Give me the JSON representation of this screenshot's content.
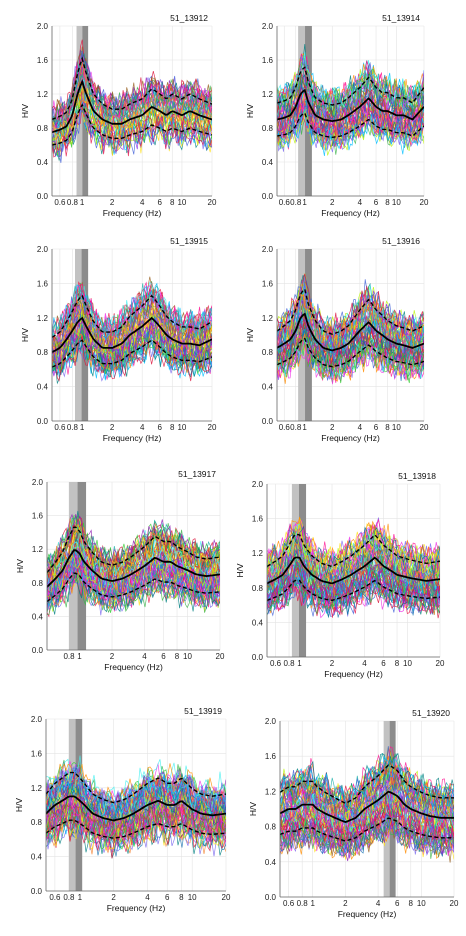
{
  "chart_data": [
    {
      "type": "line",
      "title": "51_13912",
      "xlabel": "Frequency (Hz)",
      "ylabel": "H/V",
      "xscale": "log",
      "xlim": [
        0.5,
        20
      ],
      "ylim": [
        0,
        2
      ],
      "xticks": [
        "0.6",
        "0.8",
        "1",
        "2",
        "4",
        "6",
        "8",
        "10",
        "20"
      ],
      "xtick_values": [
        0.6,
        0.8,
        1,
        2,
        4,
        6,
        8,
        10,
        20
      ],
      "yticks": [
        "0.0",
        "0.4",
        "0.8",
        "1.2",
        "1.6",
        "2.0"
      ],
      "ytick_values": [
        0,
        0.4,
        0.8,
        1.2,
        1.6,
        2.0
      ],
      "band": [
        0.88,
        1.15
      ],
      "grid": true,
      "seed": 11,
      "n_windows": 45,
      "mean_x": [
        0.5,
        0.6,
        0.7,
        0.8,
        0.9,
        1.0,
        1.1,
        1.3,
        1.6,
        2,
        2.5,
        3,
        4,
        5,
        6,
        7,
        8,
        10,
        12,
        15,
        20
      ],
      "mean_y": [
        0.75,
        0.78,
        0.82,
        0.95,
        1.2,
        1.35,
        1.2,
        1.0,
        0.9,
        0.85,
        0.85,
        0.9,
        0.95,
        1.05,
        1.0,
        0.95,
        1.0,
        0.95,
        1.0,
        0.95,
        0.9
      ],
      "spread": 0.28
    },
    {
      "type": "line",
      "title": "51_13914",
      "xlabel": "Frequency (Hz)",
      "ylabel": "H/V",
      "xscale": "log",
      "xlim": [
        0.5,
        20
      ],
      "ylim": [
        0,
        2
      ],
      "xticks": [
        "0.6",
        "0.8",
        "1",
        "2",
        "4",
        "6",
        "8",
        "10",
        "20"
      ],
      "xtick_values": [
        0.6,
        0.8,
        1,
        2,
        4,
        6,
        8,
        10,
        20
      ],
      "yticks": [
        "0.0",
        "0.4",
        "0.8",
        "1.2",
        "1.6",
        "2.0"
      ],
      "ytick_values": [
        0,
        0.4,
        0.8,
        1.2,
        1.6,
        2.0
      ],
      "band": [
        0.85,
        1.2
      ],
      "grid": true,
      "seed": 23,
      "n_windows": 55,
      "mean_x": [
        0.5,
        0.6,
        0.7,
        0.8,
        0.9,
        1.0,
        1.1,
        1.3,
        1.6,
        2,
        2.5,
        3,
        4,
        5,
        6,
        7,
        8,
        10,
        12,
        15,
        20
      ],
      "mean_y": [
        0.9,
        0.92,
        0.95,
        1.05,
        1.2,
        1.25,
        1.1,
        0.95,
        0.9,
        0.88,
        0.9,
        0.95,
        1.05,
        1.15,
        1.05,
        1.0,
        1.0,
        0.95,
        0.95,
        0.9,
        1.05
      ],
      "spread": 0.3
    },
    {
      "type": "line",
      "title": "51_13915",
      "xlabel": "Frequency (Hz)",
      "ylabel": "H/V",
      "xscale": "log",
      "xlim": [
        0.5,
        20
      ],
      "ylim": [
        0,
        2
      ],
      "xticks": [
        "0.6",
        "0.8",
        "1",
        "2",
        "4",
        "6",
        "8",
        "10",
        "20"
      ],
      "xtick_values": [
        0.6,
        0.8,
        1,
        2,
        4,
        6,
        8,
        10,
        20
      ],
      "yticks": [
        "0.0",
        "0.4",
        "0.8",
        "1.2",
        "1.6",
        "2.0"
      ],
      "ytick_values": [
        0,
        0.4,
        0.8,
        1.2,
        1.6,
        2.0
      ],
      "band": [
        0.85,
        1.15
      ],
      "grid": true,
      "seed": 37,
      "n_windows": 60,
      "mean_x": [
        0.5,
        0.6,
        0.7,
        0.8,
        0.9,
        1.0,
        1.1,
        1.3,
        1.6,
        2,
        2.5,
        3,
        4,
        5,
        6,
        7,
        8,
        10,
        12,
        15,
        20
      ],
      "mean_y": [
        0.8,
        0.85,
        0.95,
        1.05,
        1.15,
        1.2,
        1.1,
        0.95,
        0.85,
        0.85,
        0.9,
        1.0,
        1.1,
        1.2,
        1.1,
        1.0,
        0.95,
        0.9,
        0.9,
        0.88,
        0.95
      ],
      "spread": 0.3
    },
    {
      "type": "line",
      "title": "51_13916",
      "xlabel": "Frequency (Hz)",
      "ylabel": "H/V",
      "xscale": "log",
      "xlim": [
        0.5,
        20
      ],
      "ylim": [
        0,
        2
      ],
      "xticks": [
        "0.6",
        "0.8",
        "1",
        "2",
        "4",
        "6",
        "8",
        "10",
        "20"
      ],
      "xtick_values": [
        0.6,
        0.8,
        1,
        2,
        4,
        6,
        8,
        10,
        20
      ],
      "yticks": [
        "0.0",
        "0.4",
        "0.8",
        "1.2",
        "1.6",
        "2.0"
      ],
      "ytick_values": [
        0,
        0.4,
        0.8,
        1.2,
        1.6,
        2.0
      ],
      "band": [
        0.85,
        1.2
      ],
      "grid": true,
      "seed": 41,
      "n_windows": 60,
      "mean_x": [
        0.5,
        0.6,
        0.7,
        0.8,
        0.9,
        1.0,
        1.1,
        1.3,
        1.6,
        2,
        2.5,
        3,
        4,
        5,
        6,
        7,
        8,
        10,
        12,
        15,
        20
      ],
      "mean_y": [
        0.85,
        0.9,
        0.95,
        1.05,
        1.2,
        1.25,
        1.1,
        0.95,
        0.85,
        0.82,
        0.85,
        0.9,
        1.05,
        1.15,
        1.05,
        1.0,
        0.95,
        0.9,
        0.88,
        0.85,
        0.9
      ],
      "spread": 0.32
    },
    {
      "type": "line",
      "title": "51_13917",
      "xlabel": "Frequency (Hz)",
      "ylabel": "H/V",
      "xscale": "log",
      "xlim": [
        0.5,
        20
      ],
      "ylim": [
        0,
        2
      ],
      "xticks": [
        "0.8",
        "1",
        "2",
        "4",
        "6",
        "8",
        "10",
        "20"
      ],
      "xtick_values": [
        0.8,
        1,
        2,
        4,
        6,
        8,
        10,
        20
      ],
      "yticks": [
        "0.0",
        "0.4",
        "0.8",
        "1.2",
        "1.6",
        "2.0"
      ],
      "ytick_values": [
        0,
        0.4,
        0.8,
        1.2,
        1.6,
        2.0
      ],
      "band": [
        0.8,
        1.15
      ],
      "grid": true,
      "seed": 53,
      "n_windows": 70,
      "mean_x": [
        0.5,
        0.6,
        0.7,
        0.8,
        0.9,
        1.0,
        1.1,
        1.3,
        1.6,
        2,
        2.5,
        3,
        4,
        5,
        6,
        7,
        8,
        10,
        12,
        15,
        20
      ],
      "mean_y": [
        0.75,
        0.85,
        0.95,
        1.1,
        1.2,
        1.15,
        1.05,
        0.95,
        0.85,
        0.82,
        0.85,
        0.9,
        1.0,
        1.1,
        1.05,
        1.05,
        1.0,
        0.95,
        0.9,
        0.88,
        0.9
      ],
      "spread": 0.32
    },
    {
      "type": "line",
      "title": "51_13918",
      "xlabel": "Frequency (Hz)",
      "ylabel": "H/V",
      "xscale": "log",
      "xlim": [
        0.5,
        20
      ],
      "ylim": [
        0,
        2
      ],
      "xticks": [
        "0.6",
        "0.8",
        "1",
        "2",
        "4",
        "6",
        "8",
        "10",
        "20"
      ],
      "xtick_values": [
        0.6,
        0.8,
        1,
        2,
        4,
        6,
        8,
        10,
        20
      ],
      "yticks": [
        "0.0",
        "0.4",
        "0.8",
        "1.2",
        "1.6",
        "2.0"
      ],
      "ytick_values": [
        0,
        0.4,
        0.8,
        1.2,
        1.6,
        2.0
      ],
      "band": [
        0.85,
        1.15
      ],
      "grid": true,
      "seed": 67,
      "n_windows": 70,
      "mean_x": [
        0.5,
        0.6,
        0.7,
        0.8,
        0.9,
        1.0,
        1.1,
        1.3,
        1.6,
        2,
        2.5,
        3,
        4,
        5,
        6,
        7,
        8,
        10,
        12,
        15,
        20
      ],
      "mean_y": [
        0.85,
        0.9,
        0.95,
        1.05,
        1.15,
        1.15,
        1.05,
        0.95,
        0.88,
        0.85,
        0.9,
        0.95,
        1.05,
        1.15,
        1.05,
        1.0,
        0.95,
        0.92,
        0.9,
        0.88,
        0.9
      ],
      "spread": 0.32
    },
    {
      "type": "line",
      "title": "51_13919",
      "xlabel": "Frequency (Hz)",
      "ylabel": "H/V",
      "xscale": "log",
      "xlim": [
        0.5,
        20
      ],
      "ylim": [
        0,
        2
      ],
      "xticks": [
        "0.6",
        "0.8",
        "1",
        "2",
        "4",
        "6",
        "8",
        "10",
        "20"
      ],
      "xtick_values": [
        0.6,
        0.8,
        1,
        2,
        4,
        6,
        8,
        10,
        20
      ],
      "yticks": [
        "0.0",
        "0.4",
        "0.8",
        "1.2",
        "1.6",
        "2.0"
      ],
      "ytick_values": [
        0,
        0.4,
        0.8,
        1.2,
        1.6,
        2.0
      ],
      "band": [
        0.8,
        1.05
      ],
      "grid": true,
      "seed": 79,
      "n_windows": 75,
      "mean_x": [
        0.5,
        0.6,
        0.7,
        0.8,
        0.9,
        1.0,
        1.1,
        1.3,
        1.6,
        2,
        2.5,
        3,
        4,
        5,
        6,
        7,
        8,
        10,
        12,
        15,
        20
      ],
      "mean_y": [
        0.9,
        1.0,
        1.05,
        1.1,
        1.1,
        1.05,
        1.0,
        0.9,
        0.85,
        0.82,
        0.85,
        0.9,
        1.0,
        1.05,
        1.0,
        1.0,
        1.05,
        0.95,
        0.9,
        0.88,
        0.9
      ],
      "spread": 0.35
    },
    {
      "type": "line",
      "title": "51_13920",
      "xlabel": "Frequency (Hz)",
      "ylabel": "H/V",
      "xscale": "log",
      "xlim": [
        0.5,
        20
      ],
      "ylim": [
        0,
        2
      ],
      "xticks": [
        "0.6",
        "0.8",
        "1",
        "2",
        "4",
        "6",
        "8",
        "10",
        "20"
      ],
      "xtick_values": [
        0.6,
        0.8,
        1,
        2,
        4,
        6,
        8,
        10,
        20
      ],
      "yticks": [
        "0.0",
        "0.4",
        "0.8",
        "1.2",
        "1.6",
        "2.0"
      ],
      "ytick_values": [
        0,
        0.4,
        0.8,
        1.2,
        1.6,
        2.0
      ],
      "band": [
        4.5,
        5.8
      ],
      "grid": true,
      "seed": 97,
      "n_windows": 75,
      "mean_x": [
        0.5,
        0.6,
        0.7,
        0.8,
        0.9,
        1.0,
        1.1,
        1.3,
        1.6,
        2,
        2.5,
        3,
        4,
        5,
        6,
        7,
        8,
        10,
        12,
        15,
        20
      ],
      "mean_y": [
        0.95,
        1.0,
        1.0,
        1.05,
        1.05,
        1.05,
        1.0,
        0.95,
        0.9,
        0.85,
        0.9,
        1.0,
        1.1,
        1.2,
        1.15,
        1.05,
        1.0,
        0.95,
        0.92,
        0.9,
        0.9
      ],
      "spread": 0.35
    }
  ],
  "colors": {
    "mean": "#000000",
    "band_dark": "#8c8c8c",
    "band_light": "#c2c2c2",
    "grid": "#e4e4e4",
    "axis": "#666666",
    "palette": [
      "#e6194b",
      "#3cb44b",
      "#ffe119",
      "#4363d8",
      "#f58231",
      "#911eb4",
      "#46f0f0",
      "#f032e6",
      "#bcf60c",
      "#008080",
      "#9a6324",
      "#1f77b4",
      "#7b68ee",
      "#ff1493",
      "#00bfff",
      "#32cd32",
      "#ff8c00",
      "#8a2be2",
      "#20b2aa",
      "#dc143c"
    ]
  }
}
